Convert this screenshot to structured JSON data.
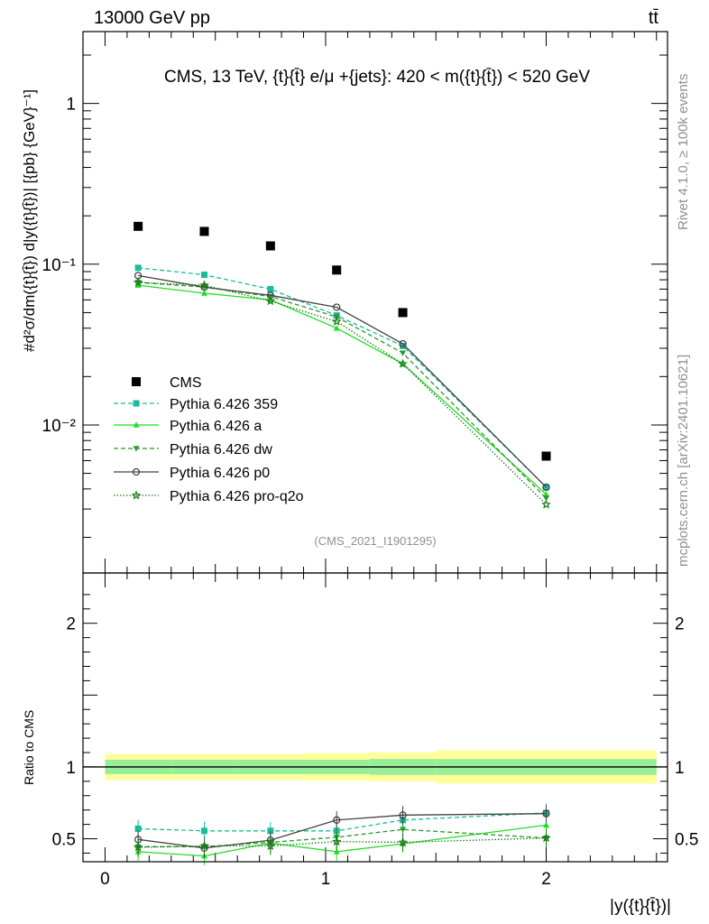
{
  "header": {
    "left": "13000 GeV pp",
    "right": "tt̄",
    "side_version": "Rivet 4.1.0, ≥ 100k events",
    "side_source": "mcplots.cern.ch [arXiv:2401.10621]"
  },
  "chart_data": [
    {
      "type": "line",
      "panel": "main",
      "title": "CMS, 13 TeV, {t}{t̄} e/μ +{jets}: 420 < m({t}{t̄}) < 520 GeV",
      "watermark": "(CMS_2021_I1901295)",
      "xlabel": "|y({t}{t̄})|",
      "ylabel": "#d²σ/dm({t}{t̄}) d|y({t}{t̄})| [{pb} {GeV}⁻¹]",
      "yscale": "log",
      "xlim": [
        -0.1,
        2.55
      ],
      "ylim": [
        0.0012,
        2.8
      ],
      "x": [
        0.15,
        0.45,
        0.75,
        1.05,
        1.35,
        2.0
      ],
      "ytick_labels": [
        "1",
        "10⁻¹",
        "10⁻²"
      ],
      "series": [
        {
          "name": "CMS",
          "style": "data",
          "color": "#000000",
          "values": [
            0.172,
            0.16,
            0.13,
            0.092,
            0.05,
            0.0064
          ]
        },
        {
          "name": "Pythia 6.426 359",
          "style": "square",
          "color": "#1abc9c",
          "values": [
            0.095,
            0.086,
            0.07,
            0.048,
            0.031,
            0.0041
          ]
        },
        {
          "name": "Pythia 6.426 a",
          "style": "triangle",
          "color": "#22dd22",
          "values": [
            0.074,
            0.066,
            0.06,
            0.04,
            0.024,
            0.0037
          ]
        },
        {
          "name": "Pythia 6.426 dw",
          "style": "triangle-down",
          "color": "#2a9a2a",
          "values": [
            0.077,
            0.072,
            0.063,
            0.047,
            0.028,
            0.0035
          ]
        },
        {
          "name": "Pythia 6.426 p0",
          "style": "circle",
          "color": "#444444",
          "values": [
            0.085,
            0.072,
            0.064,
            0.054,
            0.032,
            0.0041
          ]
        },
        {
          "name": "Pythia 6.426 pro-q2o",
          "style": "star",
          "color": "#1a7a1a",
          "values": [
            0.077,
            0.074,
            0.059,
            0.044,
            0.024,
            0.0032
          ]
        }
      ]
    },
    {
      "type": "line",
      "panel": "ratio",
      "ylabel": "Ratio to CMS",
      "xlim": [
        -0.1,
        2.55
      ],
      "ylim": [
        0.34,
        2.35
      ],
      "ytick_labels": [
        "2",
        "1",
        "0.5"
      ],
      "xtick_labels": [
        "0",
        "1",
        "2"
      ],
      "x": [
        0.15,
        0.45,
        0.75,
        1.05,
        1.35,
        2.0
      ],
      "band_edges": [
        0.0,
        0.3,
        0.6,
        0.9,
        1.2,
        1.5,
        2.5
      ],
      "band_inner": [
        0.05,
        0.05,
        0.05,
        0.05,
        0.055,
        0.055
      ],
      "band_outer": [
        0.09,
        0.09,
        0.09,
        0.095,
        0.1,
        0.115
      ],
      "series": [
        {
          "name": "Pythia 6.426 359",
          "color": "#1abc9c",
          "values": [
            0.57,
            0.555,
            0.555,
            0.555,
            0.63,
            0.68
          ]
        },
        {
          "name": "Pythia 6.426 a",
          "color": "#22dd22",
          "values": [
            0.41,
            0.38,
            0.47,
            0.41,
            0.465,
            0.595
          ]
        },
        {
          "name": "Pythia 6.426 dw",
          "color": "#2a9a2a",
          "values": [
            0.445,
            0.445,
            0.475,
            0.51,
            0.565,
            0.505
          ]
        },
        {
          "name": "Pythia 6.426 p0",
          "color": "#444444",
          "values": [
            0.495,
            0.435,
            0.49,
            0.63,
            0.665,
            0.675
          ]
        },
        {
          "name": "Pythia 6.426 pro-q2o",
          "color": "#1a7a1a",
          "values": [
            0.44,
            0.45,
            0.45,
            0.48,
            0.475,
            0.505
          ]
        }
      ]
    }
  ]
}
